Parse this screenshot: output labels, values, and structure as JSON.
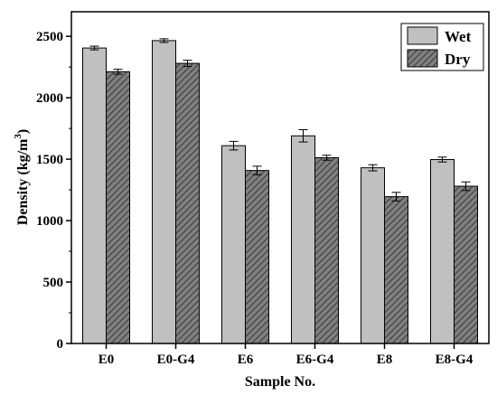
{
  "chart_data": {
    "type": "bar",
    "title": "",
    "xlabel": "Sample No.",
    "ylabel_main": "Density (kg/m",
    "ylabel_sup": "3",
    "ylabel_close": ")",
    "ylim": [
      0,
      2700
    ],
    "yticks": [
      "0",
      "500",
      "1000",
      "1500",
      "2000",
      "2500"
    ],
    "categories": [
      "E0",
      "E0-G4",
      "E6",
      "E6-G4",
      "E8",
      "E8-G4"
    ],
    "series": [
      {
        "name": "Wet",
        "values": [
          2405,
          2465,
          1610,
          1690,
          1430,
          1497
        ],
        "errors": [
          15,
          15,
          35,
          50,
          25,
          20
        ],
        "color": "#c0c0c0",
        "pattern": "solid"
      },
      {
        "name": "Dry",
        "values": [
          2212,
          2280,
          1408,
          1512,
          1195,
          1280
        ],
        "errors": [
          20,
          25,
          35,
          20,
          35,
          35
        ],
        "color": "#808080",
        "pattern": "hatch"
      }
    ],
    "legend_position": "top-right",
    "grid": false
  }
}
